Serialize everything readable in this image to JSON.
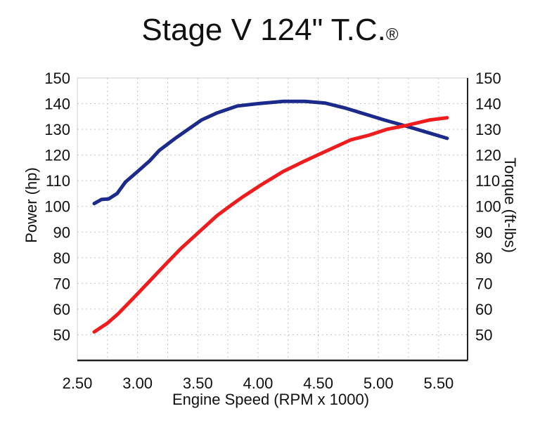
{
  "chart_data": {
    "type": "line",
    "title": "Stage V 124\" T.C.",
    "title_mark": "®",
    "xlabel": "Engine Speed (RPM x 1000)",
    "ylabel_left": "Power (hp)",
    "ylabel_right": "Torque (ft-lbs)",
    "xlim": [
      2.5,
      5.74
    ],
    "ylim": [
      40,
      150
    ],
    "x_ticks": [
      "2.50",
      "3.00",
      "3.50",
      "4.00",
      "4.50",
      "5.00",
      "5.50"
    ],
    "y_ticks": [
      "50",
      "60",
      "70",
      "80",
      "90",
      "100",
      "110",
      "120",
      "130",
      "140",
      "150"
    ],
    "grid": true,
    "grid_style": "dotted",
    "series": [
      {
        "color": "#1c2a8c",
        "points": [
          [
            2.64,
            101.1
          ],
          [
            2.7,
            102.7
          ],
          [
            2.76,
            102.9
          ],
          [
            2.83,
            105
          ],
          [
            2.9,
            109.5
          ],
          [
            3.01,
            114
          ],
          [
            3.1,
            117.7
          ],
          [
            3.18,
            121.8
          ],
          [
            3.31,
            126.4
          ],
          [
            3.42,
            130
          ],
          [
            3.53,
            133.6
          ],
          [
            3.66,
            136.4
          ],
          [
            3.83,
            139.1
          ],
          [
            4.0,
            140
          ],
          [
            4.21,
            140.9
          ],
          [
            4.39,
            140.9
          ],
          [
            4.56,
            140.2
          ],
          [
            4.73,
            138.2
          ],
          [
            4.92,
            135.5
          ],
          [
            5.05,
            133.6
          ],
          [
            5.22,
            131.4
          ],
          [
            5.42,
            128.6
          ],
          [
            5.57,
            126.5
          ]
        ]
      },
      {
        "color": "#ee1c1c",
        "points": [
          [
            2.64,
            51.1
          ],
          [
            2.75,
            54.5
          ],
          [
            2.84,
            58.2
          ],
          [
            2.97,
            64.5
          ],
          [
            3.1,
            70.9
          ],
          [
            3.23,
            77.3
          ],
          [
            3.36,
            83.6
          ],
          [
            3.51,
            90
          ],
          [
            3.66,
            96.4
          ],
          [
            3.79,
            100.9
          ],
          [
            3.87,
            103.6
          ],
          [
            4.02,
            108.2
          ],
          [
            4.21,
            113.6
          ],
          [
            4.39,
            117.7
          ],
          [
            4.56,
            121.4
          ],
          [
            4.77,
            125.9
          ],
          [
            4.92,
            127.7
          ],
          [
            5.07,
            130
          ],
          [
            5.22,
            131.4
          ],
          [
            5.42,
            133.6
          ],
          [
            5.57,
            134.5
          ]
        ]
      }
    ]
  }
}
